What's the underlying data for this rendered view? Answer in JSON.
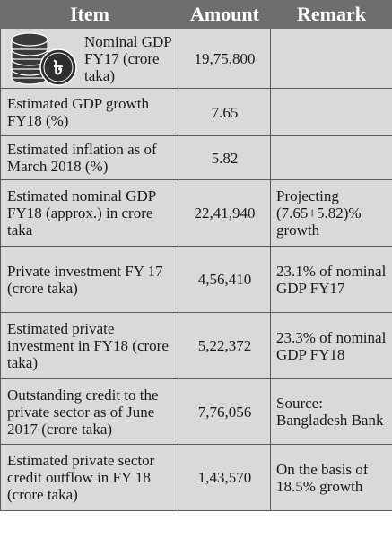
{
  "headers": {
    "item": "Item",
    "amount": "Amount",
    "remark": "Remark"
  },
  "rows": [
    {
      "item": "Nominal GDP FY17 (crore taka)",
      "amount": "19,75,800",
      "remark": ""
    },
    {
      "item": "Estimated GDP growth FY18 (%)",
      "amount": "7.65",
      "remark": ""
    },
    {
      "item": "Estimated inflation as of March 2018 (%)",
      "amount": "5.82",
      "remark": ""
    },
    {
      "item": "Estimated nominal GDP FY18 (approx.) in crore taka",
      "amount": "22,41,940",
      "remark": "Projecting (7.65+5.82)% growth"
    },
    {
      "item": "Private investment FY 17 (crore taka)",
      "amount": "4,56,410",
      "remark": "23.1% of nominal GDP FY17"
    },
    {
      "item": "Estimated private investment in FY18 (crore taka)",
      "amount": "5,22,372",
      "remark": "23.3% of nominal GDP FY18"
    },
    {
      "item": "Outstanding credit to the private sector as of June 2017 (crore taka)",
      "amount": "7,76,056",
      "remark": "Source: Bangladesh Bank"
    },
    {
      "item": "Estimated private sector credit outflow in FY 18 (crore taka)",
      "amount": "1,43,570",
      "remark": "On the basis of 18.5% growth"
    }
  ],
  "icons": {
    "coin_stack": "taka-coin-stack-icon",
    "currency_symbol": "৳"
  },
  "colors": {
    "header_bg": "#6e6e6e",
    "header_text": "#ffffff",
    "cell_bg": "#d9d9d9",
    "border": "#5a5a5a",
    "text": "#1a1a1a"
  }
}
